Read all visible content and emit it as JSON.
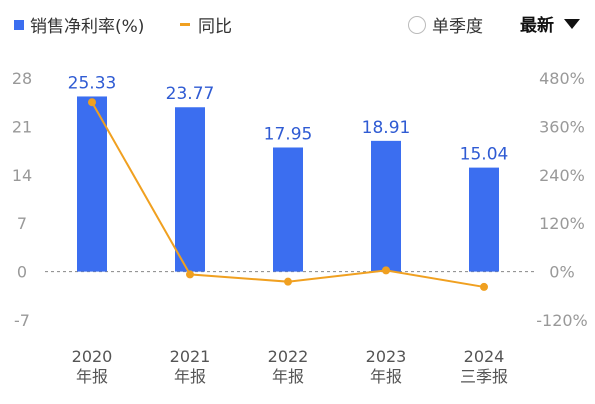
{
  "legend": {
    "bar_label": "销售净利率(%)",
    "line_label": "同比"
  },
  "controls": {
    "single_quarter": "单季度",
    "period_select": "最新"
  },
  "chart_data": {
    "type": "bar",
    "categories": [
      [
        "2020",
        "年报"
      ],
      [
        "2021",
        "年报"
      ],
      [
        "2022",
        "年报"
      ],
      [
        "2023",
        "年报"
      ],
      [
        "2024",
        "三季报"
      ]
    ],
    "series": [
      {
        "name": "销售净利率(%)",
        "type": "bar",
        "axis": "left",
        "values": [
          25.33,
          23.77,
          17.95,
          18.91,
          15.04
        ],
        "color": "#3b6ef0"
      },
      {
        "name": "同比",
        "type": "line",
        "axis": "right",
        "values": [
          420,
          -7,
          -25,
          3,
          -38
        ],
        "color": "#f0a020"
      }
    ],
    "y_left": {
      "ticks": [
        "28",
        "21",
        "14",
        "7",
        "0",
        "-7"
      ],
      "range": [
        -7,
        28
      ]
    },
    "y_right": {
      "ticks": [
        "480%",
        "360%",
        "240%",
        "120%",
        "0%",
        "-120%"
      ],
      "range": [
        -120,
        480
      ]
    },
    "grid": "zero-line dashed"
  }
}
